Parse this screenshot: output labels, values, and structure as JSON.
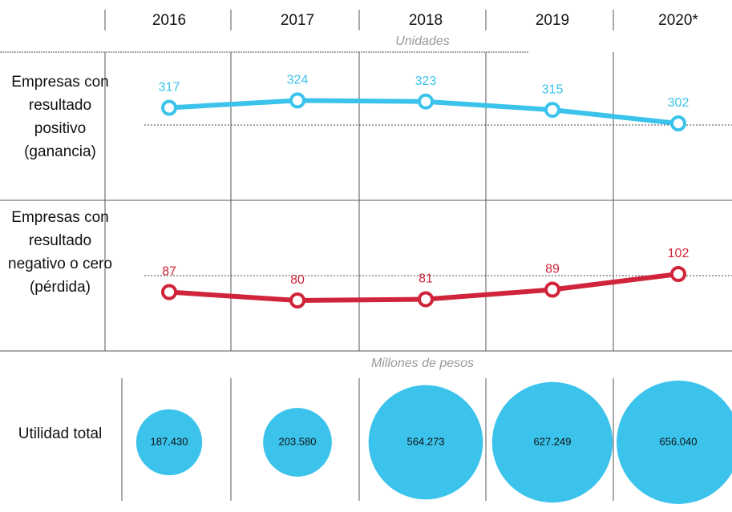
{
  "categories": [
    "2016",
    "2017",
    "2018",
    "2019",
    "2020*"
  ],
  "chart_data": [
    {
      "type": "line",
      "subtitle": "Unidades",
      "title": "Empresas con resultado positivo (ganancia)",
      "color": "#3bc3ec",
      "values": [
        317,
        324,
        323,
        315,
        302
      ]
    },
    {
      "type": "line",
      "title": "Empresas con resultado negativo o cero (pérdida)",
      "color": "#d0243a",
      "values": [
        87,
        80,
        81,
        89,
        102
      ]
    },
    {
      "type": "bubble",
      "subtitle": "Millones de pesos",
      "title": "Utilidad total",
      "color": "#3bc3ec",
      "values": [
        187430,
        203580,
        564273,
        627249,
        656040
      ],
      "value_labels": [
        "187.430",
        "203.580",
        "564.273",
        "627.249",
        "656.040"
      ]
    }
  ]
}
